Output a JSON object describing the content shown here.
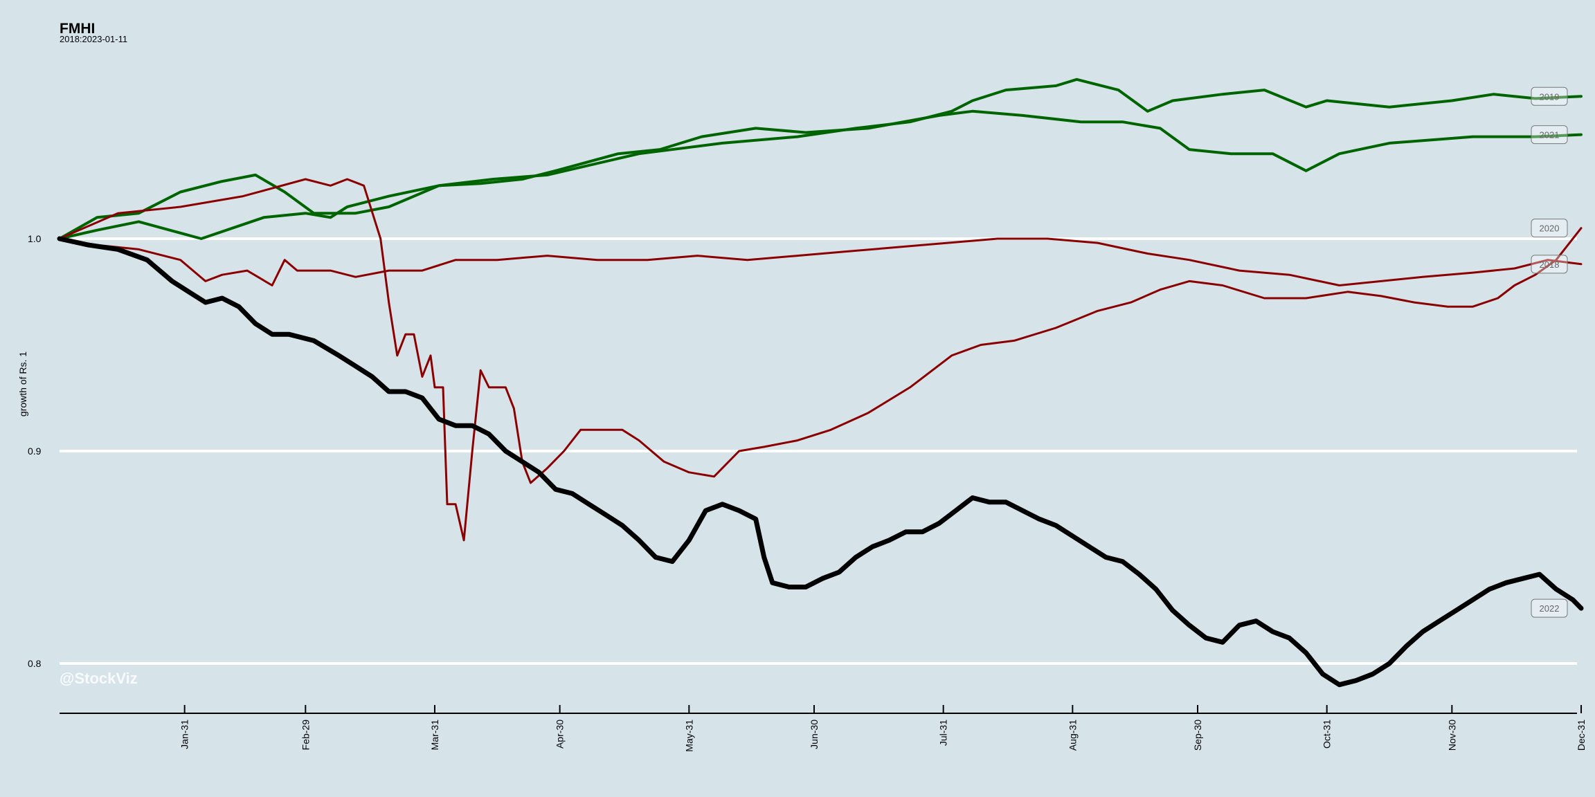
{
  "chart_data": {
    "type": "line",
    "title": "FMHI",
    "subtitle": "2018:2023-01-11",
    "ylabel": "growth of Rs. 1",
    "watermark": "@StockViz",
    "ylim": [
      0.78,
      1.1
    ],
    "yticks": [
      0.8,
      0.9,
      1.0
    ],
    "ytick_labels": [
      "0.8",
      "0.9",
      "1.0"
    ],
    "grid": "horizontal",
    "xlim": [
      1,
      365
    ],
    "xticks": [
      {
        "day": 31,
        "label": "Jan-31"
      },
      {
        "day": 60,
        "label": "Feb-29"
      },
      {
        "day": 91,
        "label": "Mar-31"
      },
      {
        "day": 121,
        "label": "Apr-30"
      },
      {
        "day": 152,
        "label": "May-31"
      },
      {
        "day": 182,
        "label": "Jun-30"
      },
      {
        "day": 213,
        "label": "Jul-31"
      },
      {
        "day": 244,
        "label": "Aug-31"
      },
      {
        "day": 274,
        "label": "Sep-30"
      },
      {
        "day": 305,
        "label": "Oct-31"
      },
      {
        "day": 335,
        "label": "Nov-30"
      },
      {
        "day": 366,
        "label": "Dec-31"
      }
    ],
    "series": [
      {
        "name": "2019",
        "color": "#006400",
        "width": 4,
        "points": [
          [
            1,
            1.0
          ],
          [
            10,
            1.004
          ],
          [
            20,
            1.008
          ],
          [
            35,
            1.0
          ],
          [
            50,
            1.01
          ],
          [
            60,
            1.012
          ],
          [
            66,
            1.01
          ],
          [
            70,
            1.015
          ],
          [
            80,
            1.02
          ],
          [
            92,
            1.025
          ],
          [
            105,
            1.028
          ],
          [
            118,
            1.03
          ],
          [
            140,
            1.04
          ],
          [
            160,
            1.045
          ],
          [
            178,
            1.048
          ],
          [
            192,
            1.052
          ],
          [
            205,
            1.055
          ],
          [
            215,
            1.06
          ],
          [
            220,
            1.065
          ],
          [
            228,
            1.07
          ],
          [
            240,
            1.072
          ],
          [
            245,
            1.075
          ],
          [
            255,
            1.07
          ],
          [
            262,
            1.06
          ],
          [
            268,
            1.065
          ],
          [
            280,
            1.068
          ],
          [
            290,
            1.07
          ],
          [
            300,
            1.062
          ],
          [
            305,
            1.065
          ],
          [
            320,
            1.062
          ],
          [
            335,
            1.065
          ],
          [
            345,
            1.068
          ],
          [
            355,
            1.066
          ],
          [
            366,
            1.067
          ]
        ]
      },
      {
        "name": "2021",
        "color": "#006400",
        "width": 4,
        "points": [
          [
            1,
            1.0
          ],
          [
            10,
            1.01
          ],
          [
            20,
            1.012
          ],
          [
            30,
            1.022
          ],
          [
            40,
            1.027
          ],
          [
            48,
            1.03
          ],
          [
            55,
            1.022
          ],
          [
            62,
            1.012
          ],
          [
            72,
            1.012
          ],
          [
            80,
            1.015
          ],
          [
            92,
            1.025
          ],
          [
            102,
            1.026
          ],
          [
            112,
            1.028
          ],
          [
            120,
            1.032
          ],
          [
            135,
            1.04
          ],
          [
            145,
            1.042
          ],
          [
            155,
            1.048
          ],
          [
            168,
            1.052
          ],
          [
            180,
            1.05
          ],
          [
            195,
            1.052
          ],
          [
            212,
            1.058
          ],
          [
            220,
            1.06
          ],
          [
            232,
            1.058
          ],
          [
            246,
            1.055
          ],
          [
            256,
            1.055
          ],
          [
            265,
            1.052
          ],
          [
            272,
            1.042
          ],
          [
            282,
            1.04
          ],
          [
            292,
            1.04
          ],
          [
            300,
            1.032
          ],
          [
            308,
            1.04
          ],
          [
            320,
            1.045
          ],
          [
            340,
            1.048
          ],
          [
            355,
            1.048
          ],
          [
            366,
            1.049
          ]
        ]
      },
      {
        "name": "2020",
        "color": "#8b0000",
        "width": 3,
        "points": [
          [
            1,
            1.0
          ],
          [
            15,
            1.012
          ],
          [
            30,
            1.015
          ],
          [
            45,
            1.02
          ],
          [
            60,
            1.028
          ],
          [
            66,
            1.025
          ],
          [
            70,
            1.028
          ],
          [
            74,
            1.025
          ],
          [
            78,
            1.0
          ],
          [
            80,
            0.97
          ],
          [
            82,
            0.945
          ],
          [
            84,
            0.955
          ],
          [
            86,
            0.955
          ],
          [
            88,
            0.935
          ],
          [
            90,
            0.945
          ],
          [
            91,
            0.93
          ],
          [
            93,
            0.93
          ],
          [
            94,
            0.875
          ],
          [
            96,
            0.875
          ],
          [
            98,
            0.858
          ],
          [
            100,
            0.9
          ],
          [
            102,
            0.938
          ],
          [
            104,
            0.93
          ],
          [
            108,
            0.93
          ],
          [
            110,
            0.92
          ],
          [
            112,
            0.895
          ],
          [
            114,
            0.885
          ],
          [
            118,
            0.892
          ],
          [
            122,
            0.9
          ],
          [
            126,
            0.91
          ],
          [
            130,
            0.91
          ],
          [
            136,
            0.91
          ],
          [
            140,
            0.905
          ],
          [
            146,
            0.895
          ],
          [
            152,
            0.89
          ],
          [
            158,
            0.888
          ],
          [
            164,
            0.9
          ],
          [
            170,
            0.902
          ],
          [
            178,
            0.905
          ],
          [
            186,
            0.91
          ],
          [
            195,
            0.918
          ],
          [
            205,
            0.93
          ],
          [
            215,
            0.945
          ],
          [
            222,
            0.95
          ],
          [
            230,
            0.952
          ],
          [
            240,
            0.958
          ],
          [
            250,
            0.966
          ],
          [
            258,
            0.97
          ],
          [
            265,
            0.976
          ],
          [
            272,
            0.98
          ],
          [
            280,
            0.978
          ],
          [
            290,
            0.972
          ],
          [
            300,
            0.972
          ],
          [
            310,
            0.975
          ],
          [
            318,
            0.973
          ],
          [
            326,
            0.97
          ],
          [
            334,
            0.968
          ],
          [
            340,
            0.968
          ],
          [
            346,
            0.972
          ],
          [
            350,
            0.978
          ],
          [
            355,
            0.983
          ],
          [
            360,
            0.99
          ],
          [
            366,
            1.005
          ]
        ]
      },
      {
        "name": "2018",
        "color": "#8b0000",
        "width": 3,
        "points": [
          [
            1,
            1.0
          ],
          [
            10,
            0.997
          ],
          [
            20,
            0.995
          ],
          [
            30,
            0.99
          ],
          [
            36,
            0.98
          ],
          [
            40,
            0.983
          ],
          [
            46,
            0.985
          ],
          [
            52,
            0.978
          ],
          [
            55,
            0.99
          ],
          [
            58,
            0.985
          ],
          [
            66,
            0.985
          ],
          [
            72,
            0.982
          ],
          [
            80,
            0.985
          ],
          [
            88,
            0.985
          ],
          [
            96,
            0.99
          ],
          [
            106,
            0.99
          ],
          [
            118,
            0.992
          ],
          [
            130,
            0.99
          ],
          [
            142,
            0.99
          ],
          [
            154,
            0.992
          ],
          [
            166,
            0.99
          ],
          [
            178,
            0.992
          ],
          [
            190,
            0.994
          ],
          [
            202,
            0.996
          ],
          [
            214,
            0.998
          ],
          [
            226,
            1.0
          ],
          [
            238,
            1.0
          ],
          [
            250,
            0.998
          ],
          [
            262,
            0.993
          ],
          [
            272,
            0.99
          ],
          [
            284,
            0.985
          ],
          [
            296,
            0.983
          ],
          [
            308,
            0.978
          ],
          [
            318,
            0.98
          ],
          [
            328,
            0.982
          ],
          [
            340,
            0.984
          ],
          [
            350,
            0.986
          ],
          [
            358,
            0.99
          ],
          [
            366,
            0.988
          ]
        ]
      },
      {
        "name": "2022",
        "color": "#000000",
        "width": 7,
        "points": [
          [
            1,
            1.0
          ],
          [
            8,
            0.997
          ],
          [
            15,
            0.995
          ],
          [
            22,
            0.99
          ],
          [
            28,
            0.98
          ],
          [
            32,
            0.975
          ],
          [
            36,
            0.97
          ],
          [
            40,
            0.972
          ],
          [
            44,
            0.968
          ],
          [
            48,
            0.96
          ],
          [
            52,
            0.955
          ],
          [
            56,
            0.955
          ],
          [
            62,
            0.952
          ],
          [
            68,
            0.945
          ],
          [
            72,
            0.94
          ],
          [
            76,
            0.935
          ],
          [
            80,
            0.928
          ],
          [
            84,
            0.928
          ],
          [
            88,
            0.925
          ],
          [
            92,
            0.915
          ],
          [
            96,
            0.912
          ],
          [
            100,
            0.912
          ],
          [
            104,
            0.908
          ],
          [
            108,
            0.9
          ],
          [
            112,
            0.895
          ],
          [
            116,
            0.89
          ],
          [
            120,
            0.882
          ],
          [
            124,
            0.88
          ],
          [
            128,
            0.875
          ],
          [
            132,
            0.87
          ],
          [
            136,
            0.865
          ],
          [
            140,
            0.858
          ],
          [
            144,
            0.85
          ],
          [
            148,
            0.848
          ],
          [
            152,
            0.858
          ],
          [
            156,
            0.872
          ],
          [
            160,
            0.875
          ],
          [
            164,
            0.872
          ],
          [
            168,
            0.868
          ],
          [
            170,
            0.85
          ],
          [
            172,
            0.838
          ],
          [
            176,
            0.836
          ],
          [
            180,
            0.836
          ],
          [
            184,
            0.84
          ],
          [
            188,
            0.843
          ],
          [
            192,
            0.85
          ],
          [
            196,
            0.855
          ],
          [
            200,
            0.858
          ],
          [
            204,
            0.862
          ],
          [
            208,
            0.862
          ],
          [
            212,
            0.866
          ],
          [
            216,
            0.872
          ],
          [
            220,
            0.878
          ],
          [
            224,
            0.876
          ],
          [
            228,
            0.876
          ],
          [
            232,
            0.872
          ],
          [
            236,
            0.868
          ],
          [
            240,
            0.865
          ],
          [
            244,
            0.86
          ],
          [
            248,
            0.855
          ],
          [
            252,
            0.85
          ],
          [
            256,
            0.848
          ],
          [
            260,
            0.842
          ],
          [
            264,
            0.835
          ],
          [
            268,
            0.825
          ],
          [
            272,
            0.818
          ],
          [
            276,
            0.812
          ],
          [
            280,
            0.81
          ],
          [
            284,
            0.818
          ],
          [
            288,
            0.82
          ],
          [
            292,
            0.815
          ],
          [
            296,
            0.812
          ],
          [
            300,
            0.805
          ],
          [
            304,
            0.795
          ],
          [
            308,
            0.79
          ],
          [
            312,
            0.792
          ],
          [
            316,
            0.795
          ],
          [
            320,
            0.8
          ],
          [
            324,
            0.808
          ],
          [
            328,
            0.815
          ],
          [
            332,
            0.82
          ],
          [
            336,
            0.825
          ],
          [
            340,
            0.83
          ],
          [
            344,
            0.835
          ],
          [
            348,
            0.838
          ],
          [
            352,
            0.84
          ],
          [
            356,
            0.842
          ],
          [
            360,
            0.835
          ],
          [
            364,
            0.83
          ],
          [
            366,
            0.826
          ]
        ]
      }
    ]
  }
}
